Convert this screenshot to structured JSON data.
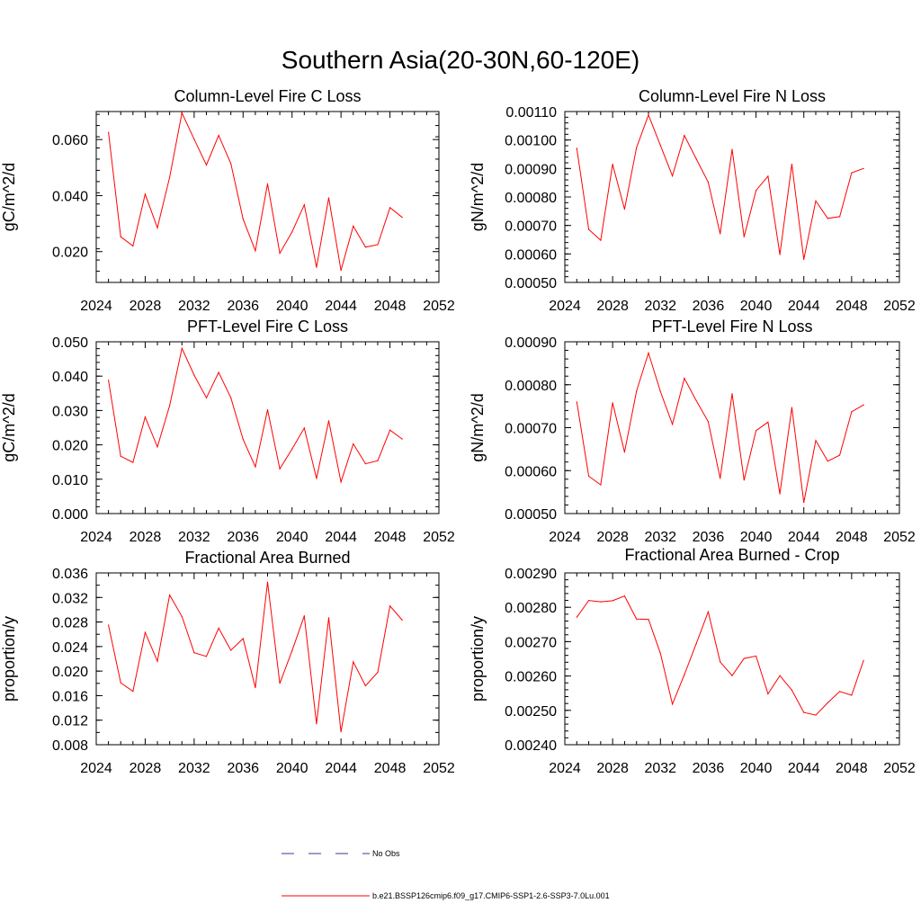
{
  "figure": {
    "title": "Southern Asia(20-30N,60-120E)"
  },
  "legend": [
    {
      "label": "No Obs",
      "color": "#3a3a9a",
      "dash": true
    },
    {
      "label": "b.e21.BSSP126cmip6.f09_g17.CMIP6-SSP1-2.6-SSP3-7.0Lu.001",
      "color": "#ff0000",
      "dash": false
    }
  ],
  "chart_data": [
    {
      "type": "line",
      "title": "Column-Level Fire C Loss",
      "ylabel": "gC/m^2/d",
      "xlim": [
        2024,
        2052
      ],
      "xticks": [
        2024,
        2028,
        2032,
        2036,
        2040,
        2044,
        2048,
        2052
      ],
      "ylim": [
        0.009,
        0.07
      ],
      "yticks": [
        0.02,
        0.04,
        0.06
      ],
      "ytick_labels": [
        "0.020",
        "0.040",
        "0.060"
      ],
      "ymin_step": 0.004,
      "series": [
        {
          "color": "#ff0000",
          "x": [
            2025,
            2026,
            2027,
            2028,
            2029,
            2030,
            2031,
            2032,
            2033,
            2034,
            2035,
            2036,
            2037,
            2038,
            2039,
            2040,
            2041,
            2042,
            2043,
            2044,
            2045,
            2046,
            2047,
            2048,
            2049
          ],
          "values": [
            0.0626,
            0.0253,
            0.022,
            0.0405,
            0.0285,
            0.0465,
            0.0695,
            0.0601,
            0.0509,
            0.0615,
            0.0514,
            0.0316,
            0.0203,
            0.0442,
            0.0194,
            0.027,
            0.0367,
            0.0144,
            0.0392,
            0.0133,
            0.0291,
            0.0216,
            0.0225,
            0.0357,
            0.0322
          ]
        }
      ]
    },
    {
      "type": "line",
      "title": "Column-Level Fire N Loss",
      "ylabel": "gN/m^2/d",
      "xlim": [
        2024,
        2052
      ],
      "xticks": [
        2024,
        2028,
        2032,
        2036,
        2040,
        2044,
        2048,
        2052
      ],
      "ylim": [
        0.0005,
        0.0011
      ],
      "yticks": [
        0.0005,
        0.0006,
        0.0007,
        0.0008,
        0.0009,
        0.001,
        0.0011
      ],
      "ytick_labels": [
        "0.00050",
        "0.00060",
        "0.00070",
        "0.00080",
        "0.00090",
        "0.00100",
        "0.00110"
      ],
      "ymin_step": 2e-05,
      "series": [
        {
          "color": "#ff0000",
          "x": [
            2025,
            2026,
            2027,
            2028,
            2029,
            2030,
            2031,
            2032,
            2033,
            2034,
            2035,
            2036,
            2037,
            2038,
            2039,
            2040,
            2041,
            2042,
            2043,
            2044,
            2045,
            2046,
            2047,
            2048,
            2049
          ],
          "values": [
            0.000971,
            0.000686,
            0.000648,
            0.000915,
            0.000757,
            0.000973,
            0.001088,
            0.000981,
            0.000874,
            0.001016,
            0.000934,
            0.000852,
            0.000671,
            0.000967,
            0.00066,
            0.000823,
            0.000873,
            0.000598,
            0.000915,
            0.000581,
            0.000786,
            0.000725,
            0.000731,
            0.000885,
            0.0009
          ]
        }
      ]
    },
    {
      "type": "line",
      "title": "PFT-Level Fire C Loss",
      "ylabel": "gC/m^2/d",
      "xlim": [
        2024,
        2052
      ],
      "xticks": [
        2024,
        2028,
        2032,
        2036,
        2040,
        2044,
        2048,
        2052
      ],
      "ylim": [
        0.0,
        0.05
      ],
      "yticks": [
        0.0,
        0.01,
        0.02,
        0.03,
        0.04,
        0.05
      ],
      "ytick_labels": [
        "0.000",
        "0.010",
        "0.020",
        "0.030",
        "0.040",
        "0.050"
      ],
      "ymin_step": 0.002,
      "series": [
        {
          "color": "#ff0000",
          "x": [
            2025,
            2026,
            2027,
            2028,
            2029,
            2030,
            2031,
            2032,
            2033,
            2034,
            2035,
            2036,
            2037,
            2038,
            2039,
            2040,
            2041,
            2042,
            2043,
            2044,
            2045,
            2046,
            2047,
            2048,
            2049
          ],
          "values": [
            0.0388,
            0.0167,
            0.0149,
            0.0281,
            0.0194,
            0.0314,
            0.0481,
            0.0403,
            0.0337,
            0.0411,
            0.0337,
            0.0216,
            0.0136,
            0.0302,
            0.013,
            0.0188,
            0.0249,
            0.0102,
            0.027,
            0.0092,
            0.0203,
            0.0145,
            0.0154,
            0.0243,
            0.0217
          ]
        }
      ]
    },
    {
      "type": "line",
      "title": "PFT-Level Fire N Loss",
      "ylabel": "gN/m^2/d",
      "xlim": [
        2024,
        2052
      ],
      "xticks": [
        2024,
        2028,
        2032,
        2036,
        2040,
        2044,
        2048,
        2052
      ],
      "ylim": [
        0.0005,
        0.0009
      ],
      "yticks": [
        0.0005,
        0.0006,
        0.0007,
        0.0008,
        0.0009
      ],
      "ytick_labels": [
        "0.00050",
        "0.00060",
        "0.00070",
        "0.00080",
        "0.00090"
      ],
      "ymin_step": 2e-05,
      "series": [
        {
          "color": "#ff0000",
          "x": [
            2025,
            2026,
            2027,
            2028,
            2029,
            2030,
            2031,
            2032,
            2033,
            2034,
            2035,
            2036,
            2037,
            2038,
            2039,
            2040,
            2041,
            2042,
            2043,
            2044,
            2045,
            2046,
            2047,
            2048,
            2049
          ],
          "values": [
            0.00076,
            0.000587,
            0.000567,
            0.000758,
            0.000643,
            0.000785,
            0.000874,
            0.000784,
            0.000708,
            0.000815,
            0.000763,
            0.000714,
            0.000582,
            0.000779,
            0.000578,
            0.000693,
            0.000713,
            0.000546,
            0.000747,
            0.000526,
            0.00067,
            0.000622,
            0.000636,
            0.000737,
            0.000753
          ]
        }
      ]
    },
    {
      "type": "line",
      "title": "Fractional Area Burned",
      "ylabel": "proportion/y",
      "xlim": [
        2024,
        2052
      ],
      "xticks": [
        2024,
        2028,
        2032,
        2036,
        2040,
        2044,
        2048,
        2052
      ],
      "ylim": [
        0.008,
        0.036
      ],
      "yticks": [
        0.008,
        0.012,
        0.016,
        0.02,
        0.024,
        0.028,
        0.032,
        0.036
      ],
      "ytick_labels": [
        "0.008",
        "0.012",
        "0.016",
        "0.020",
        "0.024",
        "0.028",
        "0.032",
        "0.036"
      ],
      "ymin_step": 0.002,
      "series": [
        {
          "color": "#ff0000",
          "x": [
            2025,
            2026,
            2027,
            2028,
            2029,
            2030,
            2031,
            2032,
            2033,
            2034,
            2035,
            2036,
            2037,
            2038,
            2039,
            2040,
            2041,
            2042,
            2043,
            2044,
            2045,
            2046,
            2047,
            2048,
            2049
          ],
          "values": [
            0.0275,
            0.0181,
            0.0167,
            0.0263,
            0.0216,
            0.0324,
            0.0289,
            0.023,
            0.0224,
            0.027,
            0.0234,
            0.0253,
            0.0173,
            0.0345,
            0.018,
            0.0233,
            0.029,
            0.0114,
            0.0287,
            0.0101,
            0.0215,
            0.0176,
            0.0198,
            0.0306,
            0.0283
          ]
        }
      ]
    },
    {
      "type": "line",
      "title": "Fractional Area Burned - Crop",
      "ylabel": "proportion/y",
      "xlim": [
        2024,
        2052
      ],
      "xticks": [
        2024,
        2028,
        2032,
        2036,
        2040,
        2044,
        2048,
        2052
      ],
      "ylim": [
        0.0024,
        0.0029
      ],
      "yticks": [
        0.0024,
        0.0025,
        0.0026,
        0.0027,
        0.0028,
        0.0029
      ],
      "ytick_labels": [
        "0.00240",
        "0.00250",
        "0.00260",
        "0.00270",
        "0.00280",
        "0.00290"
      ],
      "ymin_step": 2e-05,
      "series": [
        {
          "color": "#ff0000",
          "x": [
            2025,
            2026,
            2027,
            2028,
            2029,
            2030,
            2031,
            2032,
            2033,
            2034,
            2035,
            2036,
            2037,
            2038,
            2039,
            2040,
            2041,
            2042,
            2043,
            2044,
            2045,
            2046,
            2047,
            2048,
            2049
          ],
          "values": [
            0.002771,
            0.00282,
            0.002816,
            0.002819,
            0.002833,
            0.002766,
            0.002765,
            0.002666,
            0.002518,
            0.002604,
            0.002694,
            0.002787,
            0.002641,
            0.002601,
            0.002651,
            0.002658,
            0.002548,
            0.002601,
            0.002559,
            0.002494,
            0.002486,
            0.002522,
            0.002555,
            0.002544,
            0.002645
          ]
        }
      ]
    }
  ]
}
